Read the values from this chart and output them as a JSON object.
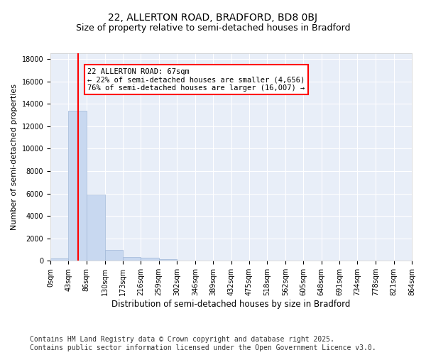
{
  "title_line1": "22, ALLERTON ROAD, BRADFORD, BD8 0BJ",
  "title_line2": "Size of property relative to semi-detached houses in Bradford",
  "xlabel": "Distribution of semi-detached houses by size in Bradford",
  "ylabel": "Number of semi-detached properties",
  "bar_edges": [
    0,
    43,
    86,
    130,
    173,
    216,
    259,
    302,
    346,
    389,
    432,
    475,
    518,
    562,
    605,
    648,
    691,
    734,
    778,
    821,
    864
  ],
  "bar_heights": [
    200,
    13400,
    5900,
    950,
    320,
    280,
    130,
    0,
    0,
    0,
    0,
    0,
    0,
    0,
    0,
    0,
    0,
    0,
    0,
    0
  ],
  "bar_color": "#c8d8f0",
  "bar_edgecolor": "#a0b8d8",
  "property_line_x": 67,
  "property_line_color": "red",
  "annotation_text": "22 ALLERTON ROAD: 67sqm\n← 22% of semi-detached houses are smaller (4,656)\n76% of semi-detached houses are larger (16,007) →",
  "annotation_box_color": "white",
  "annotation_box_edgecolor": "red",
  "ylim": [
    0,
    18500
  ],
  "yticks": [
    0,
    2000,
    4000,
    6000,
    8000,
    10000,
    12000,
    14000,
    16000,
    18000
  ],
  "tick_labels": [
    "0sqm",
    "43sqm",
    "86sqm",
    "130sqm",
    "173sqm",
    "216sqm",
    "259sqm",
    "302sqm",
    "346sqm",
    "389sqm",
    "432sqm",
    "475sqm",
    "518sqm",
    "562sqm",
    "605sqm",
    "648sqm",
    "691sqm",
    "734sqm",
    "778sqm",
    "821sqm",
    "864sqm"
  ],
  "background_color": "#e8eef8",
  "footer_line1": "Contains HM Land Registry data © Crown copyright and database right 2025.",
  "footer_line2": "Contains public sector information licensed under the Open Government Licence v3.0.",
  "title_fontsize": 10,
  "subtitle_fontsize": 9,
  "xlabel_fontsize": 8.5,
  "ylabel_fontsize": 8,
  "tick_fontsize": 7,
  "footer_fontsize": 7,
  "annot_fontsize": 7.5
}
